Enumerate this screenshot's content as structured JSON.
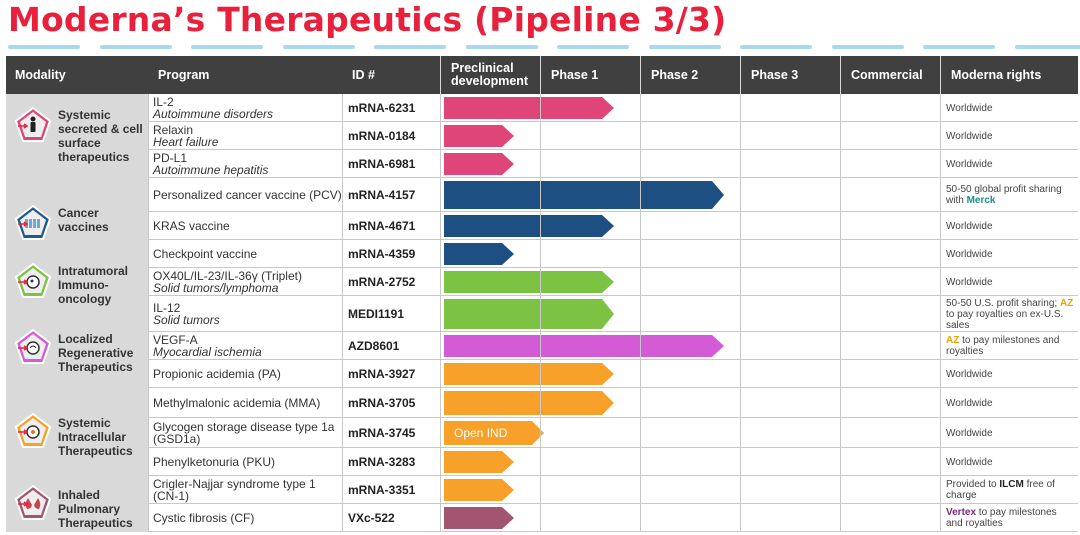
{
  "title": "Moderna’s Therapeutics (Pipeline 3/3)",
  "headers": {
    "modality": "Modality",
    "program": "Program",
    "id": "ID #",
    "preclinical": "Preclinical development",
    "phase1": "Phase 1",
    "phase2": "Phase 2",
    "phase3": "Phase 3",
    "commercial": "Commercial",
    "rights": "Moderna rights"
  },
  "modalities": [
    {
      "name": "Systemic secreted & cell surface therapeutics",
      "icon": "person-icon",
      "color": "#e0457a"
    },
    {
      "name": "Cancer vaccines",
      "icon": "cells-icon",
      "color": "#1f5b8e"
    },
    {
      "name": "Intratumoral Immuno-oncology",
      "icon": "tumor-cell-icon",
      "color": "#7cc243"
    },
    {
      "name": "Localized Regenerative Therapeutics",
      "icon": "heart-icon",
      "color": "#d35cd6"
    },
    {
      "name": "Systemic Intracellular Therapeutics",
      "icon": "cell-icon",
      "color": "#f7a02a"
    },
    {
      "name": "Inhaled Pulmonary Therapeutics",
      "icon": "lungs-icon",
      "color": "#a25470"
    }
  ],
  "rows": [
    {
      "program": "IL-2",
      "indication": "Autoimmune disorders",
      "id": "mRNA-6231",
      "stage": 1.7,
      "color": "#e0457a",
      "rights": "Worldwide"
    },
    {
      "program": "Relaxin",
      "indication": "Heart failure",
      "id": "mRNA-0184",
      "stage": 0.7,
      "color": "#e0457a",
      "rights": "Worldwide"
    },
    {
      "program": "PD-L1",
      "indication": "Autoimmune hepatitis",
      "id": "mRNA-6981",
      "stage": 0.7,
      "color": "#e0457a",
      "rights": "Worldwide"
    },
    {
      "program": "Personalized cancer vaccine (PCV)",
      "indication": "",
      "id": "mRNA-4157",
      "stage": 2.8,
      "color": "#1d4f82",
      "rights": "50-50 global profit sharing with ",
      "rights_bold": "Merck",
      "rights_after": ""
    },
    {
      "program": "KRAS vaccine",
      "indication": "",
      "id": "mRNA-4671",
      "stage": 1.7,
      "color": "#1d4f82",
      "rights": "Worldwide"
    },
    {
      "program": "Checkpoint vaccine",
      "indication": "",
      "id": "mRNA-4359",
      "stage": 0.7,
      "color": "#1d4f82",
      "rights": "Worldwide"
    },
    {
      "program": "OX40L/IL-23/IL-36γ (Triplet)",
      "indication": "Solid tumors/lymphoma",
      "id": "mRNA-2752",
      "stage": 1.7,
      "color": "#7cc243",
      "rights": "Worldwide"
    },
    {
      "program": "IL-12",
      "indication": "Solid tumors",
      "id": "MEDI1191",
      "stage": 1.7,
      "color": "#7cc243",
      "rights": "50-50 U.S. profit sharing; ",
      "rights_bold": "AZ",
      "rights_after": " to pay royalties on ex-U.S. sales"
    },
    {
      "program": "VEGF-A",
      "indication": "Myocardial ischemia",
      "id": "AZD8601",
      "stage": 2.8,
      "color": "#d35cd6",
      "rights": "",
      "rights_bold": "AZ",
      "rights_after": " to pay milestones and royalties"
    },
    {
      "program": "Propionic acidemia (PA)",
      "indication": "",
      "id": "mRNA-3927",
      "stage": 1.7,
      "color": "#f7a02a",
      "rights": "Worldwide"
    },
    {
      "program": "Methylmalonic acidemia (MMA)",
      "indication": "",
      "id": "mRNA-3705",
      "stage": 1.7,
      "color": "#f7a02a",
      "rights": "Worldwide"
    },
    {
      "program": "Glycogen storage disease type 1a (GSD1a)",
      "indication": "",
      "id": "mRNA-3745",
      "stage": 1.0,
      "color": "#f7a02a",
      "rights": "Worldwide",
      "bar_text": "Open IND"
    },
    {
      "program": "Phenylketonuria (PKU)",
      "indication": "",
      "id": "mRNA-3283",
      "stage": 0.7,
      "color": "#f7a02a",
      "rights": "Worldwide"
    },
    {
      "program": "Crigler-Najjar syndrome type 1 (CN-1)",
      "indication": "",
      "id": "mRNA-3351",
      "stage": 0.7,
      "color": "#f7a02a",
      "rights": "Provided to ",
      "rights_bold": "ILCM",
      "rights_after": " free of charge"
    },
    {
      "program": "Cystic fibrosis (CF)",
      "indication": "",
      "id": "VXc-522",
      "stage": 0.7,
      "color": "#a25470",
      "rights": "",
      "rights_bold": "Vertex",
      "rights_after": " to pay milestones and royalties"
    }
  ]
}
